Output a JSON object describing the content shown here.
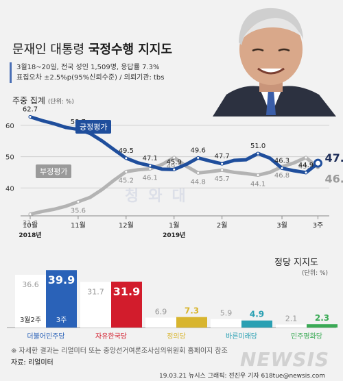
{
  "header": {
    "title_plain": "문재인 대통령",
    "title_bold": "국정수행 지지도",
    "survey_line1": "3월18~20일, 전국 성인 1,509명, 응답률 7.3%",
    "survey_line2": "표집오차 ±2.5%p(95%신뢰수준) / 의뢰기관: tbs"
  },
  "line_section": {
    "label": "주중 집계",
    "unit": "(단위: %)",
    "y_ticks": [
      "60",
      "50",
      "40"
    ],
    "x_labels": [
      "10월",
      "11월",
      "12월",
      "1월",
      "2월",
      "3월",
      "3주"
    ],
    "year_labels": [
      "2018년",
      "2019년"
    ],
    "positive_label": "긍정평가",
    "negative_label": "부정평가",
    "watermark": "청와대",
    "latest_positive": "47.9%",
    "latest_negative": "46.5%"
  },
  "bar_section": {
    "label": "정당 지지도",
    "unit": "(단위: %)",
    "legend_prev": "3월2주",
    "legend_curr": "3주"
  },
  "footer": {
    "note": "※ 자세한 결과는 리얼미터 또는 중앙선거여론조사심의위원회 홈페이지 참조",
    "source": "자료: 리얼미터",
    "credit": "19.03.21  뉴시스 그래픽: 전진우 기자 618tue@newsis.com",
    "brand": "NEWSIS"
  },
  "colors": {
    "positive": "#1f4e9c",
    "negative": "#b3b3b3",
    "background": "#f2f2f2"
  },
  "chart_data": [
    {
      "type": "line",
      "title": "문재인 대통령 국정수행 지지도",
      "ylabel": "%",
      "ylim": [
        30,
        65
      ],
      "grid": true,
      "x_labels": [
        "10월",
        "11월",
        "12월",
        "1월",
        "2월",
        "3월",
        "3주"
      ],
      "series": [
        {
          "name": "긍정평가",
          "values": [
            62.7,
            61.5,
            60.5,
            59.3,
            58.7,
            57.4,
            55.0,
            52.2,
            49.5,
            48.0,
            47.1,
            46.0,
            45.9,
            47.5,
            49.6,
            48.6,
            47.7,
            48.8,
            49.0,
            51.0,
            49.5,
            46.3,
            45.5,
            44.9,
            47.9
          ],
          "labels": [
            "62.7",
            "",
            "",
            "",
            "58.7",
            "",
            "",
            "",
            "49.5",
            "",
            "47.1",
            "",
            "45.9",
            "",
            "49.6",
            "",
            "47.7",
            "",
            "",
            "51.0",
            "",
            "46.3",
            "",
            "44.9",
            "47.9"
          ]
        },
        {
          "name": "부정평가",
          "values": [
            31.6,
            32.5,
            33.2,
            34.2,
            35.6,
            37.0,
            39.5,
            42.5,
            45.2,
            45.8,
            46.1,
            47.5,
            49.7,
            47.0,
            44.8,
            45.2,
            45.7,
            45.0,
            44.6,
            44.1,
            45.0,
            46.8,
            48.0,
            49.7,
            46.5
          ],
          "labels": [
            "31.6",
            "",
            "",
            "",
            "35.6",
            "",
            "",
            "",
            "45.2",
            "",
            "46.1",
            "",
            "49.7",
            "",
            "44.8",
            "",
            "45.7",
            "",
            "",
            "44.1",
            "",
            "46.8",
            "",
            "49.7",
            "46.5"
          ]
        }
      ]
    },
    {
      "type": "bar",
      "title": "정당 지지도",
      "ylabel": "%",
      "categories": [
        "더불어민주당",
        "자유한국당",
        "정의당",
        "바른미래당",
        "민주평화당"
      ],
      "category_colors": [
        "#2a62b8",
        "#d21c2c",
        "#d8b52f",
        "#2aa0b3",
        "#3aaa55"
      ],
      "series": [
        {
          "name": "3월2주",
          "values": [
            36.6,
            31.7,
            6.9,
            5.9,
            2.1
          ]
        },
        {
          "name": "3주",
          "values": [
            39.9,
            31.9,
            7.3,
            4.9,
            2.3
          ]
        }
      ]
    }
  ]
}
